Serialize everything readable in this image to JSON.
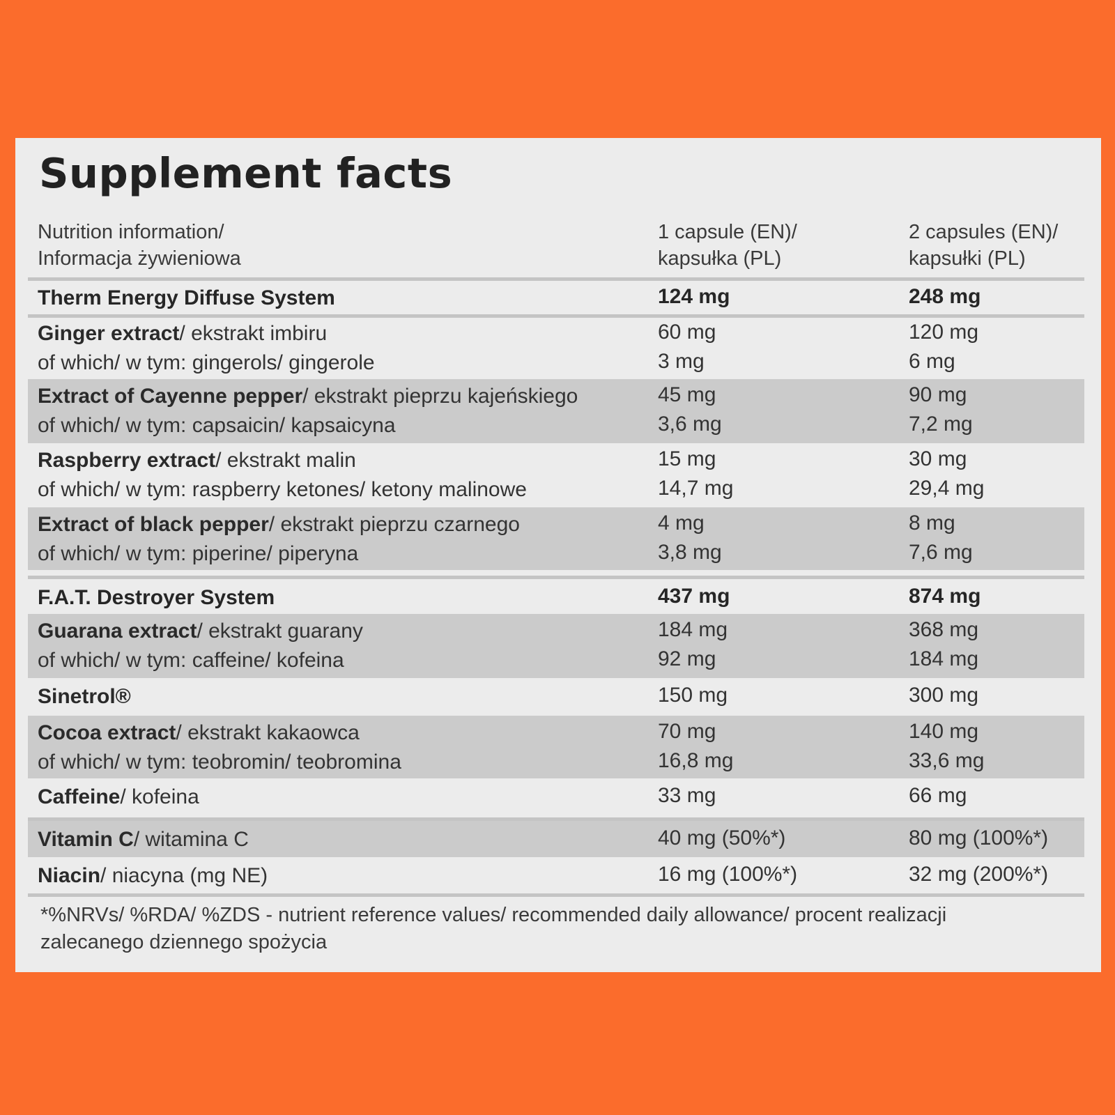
{
  "title": "Supplement facts",
  "header": {
    "col1": [
      "Nutrition information/",
      "Informacja żywieniowa"
    ],
    "col2": [
      "1 capsule (EN)/",
      "kapsułka (PL)"
    ],
    "col3": [
      "2 capsules (EN)/",
      "kapsułki (PL)"
    ]
  },
  "rows": {
    "therm": {
      "name": "Therm Energy Diffuse System",
      "v1": "124 mg",
      "v2": "248 mg"
    },
    "ginger": {
      "name_bold": "Ginger extract",
      "name_rest": "/ ekstrakt imbiru",
      "sub": "of which/ w tym: gingerols/ gingerole",
      "v1": "60 mg",
      "v1_sub": "3 mg",
      "v2": "120 mg",
      "v2_sub": "6 mg"
    },
    "cayenne": {
      "name_bold": "Extract of Cayenne pepper",
      "name_rest": "/ ekstrakt pieprzu kajeńskiego",
      "sub": "of which/ w tym: capsaicin/ kapsaicyna",
      "v1": "45 mg",
      "v1_sub": "3,6 mg",
      "v2": "90 mg",
      "v2_sub": "7,2 mg"
    },
    "raspberry": {
      "name_bold": "Raspberry extract",
      "name_rest": "/ ekstrakt malin",
      "sub": "of which/ w tym: raspberry ketones/ ketony malinowe",
      "v1": "15 mg",
      "v1_sub": "14,7 mg",
      "v2": "30 mg",
      "v2_sub": "29,4 mg"
    },
    "blackpepper": {
      "name_bold": "Extract of black pepper",
      "name_rest": "/ ekstrakt pieprzu czarnego",
      "sub": "of which/ w tym: piperine/ piperyna",
      "v1": "4 mg",
      "v1_sub": "3,8 mg",
      "v2": "8 mg",
      "v2_sub": "7,6 mg"
    },
    "fat": {
      "name": "F.A.T. Destroyer System",
      "v1": "437 mg",
      "v2": "874 mg"
    },
    "guarana": {
      "name_bold": "Guarana extract",
      "name_rest": "/ ekstrakt guarany",
      "sub": "of which/ w tym: caffeine/ kofeina",
      "v1": "184 mg",
      "v1_sub": "92 mg",
      "v2": "368 mg",
      "v2_sub": "184 mg"
    },
    "sinetrol": {
      "name_bold": "Sinetrol®",
      "v1": "150 mg",
      "v2": "300 mg"
    },
    "cocoa": {
      "name_bold": "Cocoa extract",
      "name_rest": "/ ekstrakt kakaowca",
      "sub": "of which/ w tym: teobromin/ teobromina",
      "v1": "70 mg",
      "v1_sub": "16,8 mg",
      "v2": "140 mg",
      "v2_sub": "33,6 mg"
    },
    "caffeine": {
      "name_bold": "Caffeine",
      "name_rest": "/ kofeina",
      "v1": "33 mg",
      "v2": "66 mg"
    },
    "vitc": {
      "name_bold": "Vitamin C",
      "name_rest": "/ witamina C",
      "v1": "40 mg (50%*)",
      "v2": "80 mg (100%*)"
    },
    "niacin": {
      "name_bold": "Niacin",
      "name_rest": "/ niacyna (mg NE)",
      "v1": "16 mg (100%*)",
      "v2": "32 mg (200%*)"
    }
  },
  "footnote": "*%NRVs/ %RDA/ %ZDS - nutrient reference values/ recommended daily allowance/ procent realizacji zalecanego dziennego spożycia"
}
